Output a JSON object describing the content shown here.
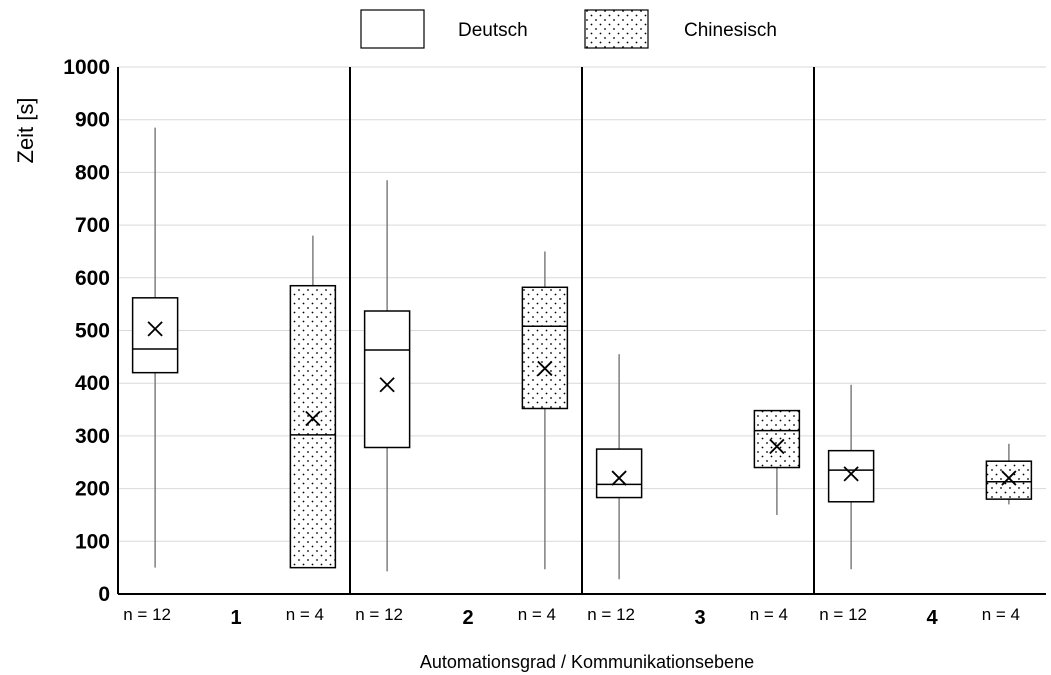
{
  "chart_data": {
    "type": "box",
    "ylabel": "Zeit [s]",
    "xlabel": "Automationsgrad / Kommunikationsebene",
    "ylim": [
      0,
      1000
    ],
    "yticks": [
      0,
      100,
      200,
      300,
      400,
      500,
      600,
      700,
      800,
      900,
      1000
    ],
    "grid": true,
    "legend_position": "top-center",
    "series": [
      {
        "name": "Deutsch",
        "pattern": "none"
      },
      {
        "name": "Chinesisch",
        "pattern": "dotted"
      }
    ],
    "groups": [
      {
        "label": "1",
        "boxes": [
          {
            "series": "Deutsch",
            "n_label": "n = 12",
            "min": 50,
            "q1": 420,
            "median": 465,
            "q3": 562,
            "max": 885,
            "mean": 503
          },
          {
            "series": "Chinesisch",
            "n_label": "n = 4",
            "min": 50,
            "q1": 50,
            "median": 302,
            "q3": 585,
            "max": 680,
            "mean": 333
          }
        ]
      },
      {
        "label": "2",
        "boxes": [
          {
            "series": "Deutsch",
            "n_label": "n = 12",
            "min": 43,
            "q1": 278,
            "median": 463,
            "q3": 537,
            "max": 785,
            "mean": 397
          },
          {
            "series": "Chinesisch",
            "n_label": "n = 4",
            "min": 47,
            "q1": 352,
            "median": 508,
            "q3": 582,
            "max": 650,
            "mean": 428
          }
        ]
      },
      {
        "label": "3",
        "boxes": [
          {
            "series": "Deutsch",
            "n_label": "n = 12",
            "min": 28,
            "q1": 183,
            "median": 208,
            "q3": 275,
            "max": 455,
            "mean": 220
          },
          {
            "series": "Chinesisch",
            "n_label": "n = 4",
            "min": 150,
            "q1": 240,
            "median": 310,
            "q3": 348,
            "max": 348,
            "mean": 280
          }
        ]
      },
      {
        "label": "4",
        "boxes": [
          {
            "series": "Deutsch",
            "n_label": "n = 12",
            "min": 47,
            "q1": 175,
            "median": 235,
            "q3": 272,
            "max": 397,
            "mean": 228
          },
          {
            "series": "Chinesisch",
            "n_label": "n = 4",
            "min": 170,
            "q1": 180,
            "median": 213,
            "q3": 252,
            "max": 285,
            "mean": 220
          }
        ]
      }
    ]
  },
  "colors": {
    "box_stroke": "#000000",
    "grid": "#d9d9d9",
    "whisker": "#7f7f7f",
    "background": "#ffffff"
  }
}
